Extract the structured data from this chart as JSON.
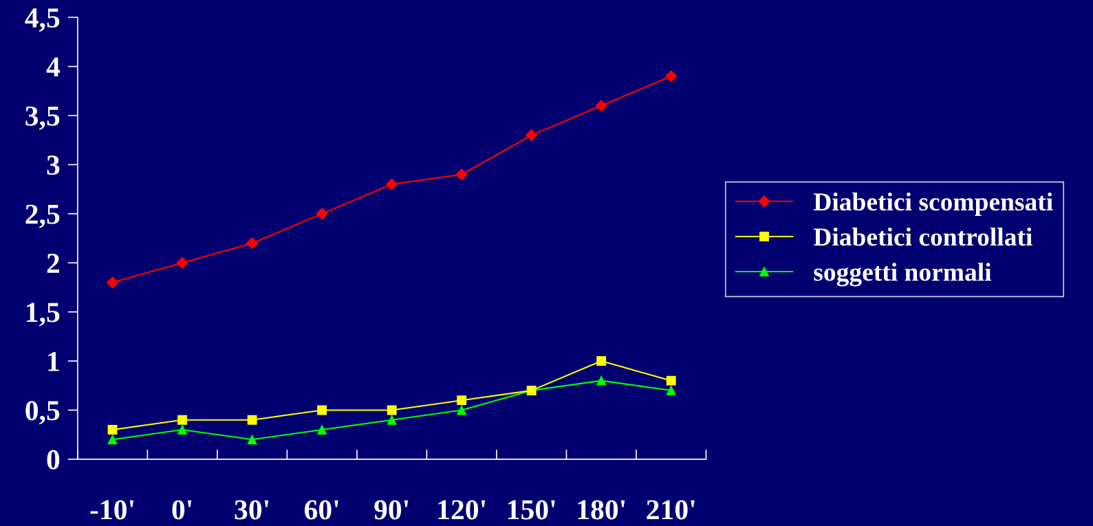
{
  "chart_data": {
    "type": "line",
    "categories": [
      "-10'",
      "0'",
      "30'",
      "60'",
      "90'",
      "120'",
      "150'",
      "180'",
      "210'"
    ],
    "series": [
      {
        "name": "Diabetici scompensati",
        "color": "#ff0000",
        "marker": "diamond",
        "values": [
          1.8,
          2.0,
          2.2,
          2.5,
          2.8,
          2.9,
          3.3,
          3.6,
          3.9
        ]
      },
      {
        "name": "Diabetici controllati",
        "color": "#ffff00",
        "marker": "square",
        "values": [
          0.3,
          0.4,
          0.4,
          0.5,
          0.5,
          0.6,
          0.7,
          1.0,
          0.8
        ]
      },
      {
        "name": "soggetti normali",
        "color": "#00ff00",
        "marker": "triangle",
        "values": [
          0.2,
          0.3,
          0.2,
          0.3,
          0.4,
          0.5,
          0.7,
          0.8,
          0.7
        ]
      }
    ],
    "ylim": [
      0,
      4.5
    ],
    "yticks": [
      0,
      {
        "value": 0.5,
        "label": "0,5"
      },
      1,
      {
        "value": 1.5,
        "label": "1,5"
      },
      2,
      {
        "value": 2.5,
        "label": "2,5"
      },
      3,
      {
        "value": 3.5,
        "label": "3,5"
      },
      4,
      {
        "value": 4.5,
        "label": "4,5"
      }
    ],
    "grid": false,
    "legend": "right",
    "line_style": "solid"
  }
}
